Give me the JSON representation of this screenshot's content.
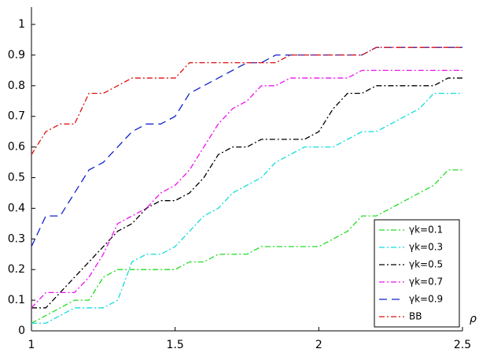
{
  "chart_data": {
    "type": "line",
    "x_label": "ρ",
    "x": [
      1,
      1.05,
      1.1,
      1.15,
      1.2,
      1.25,
      1.3,
      1.35,
      1.4,
      1.45,
      1.5,
      1.55,
      1.6,
      1.65,
      1.7,
      1.75,
      1.8,
      1.85,
      1.9,
      1.95,
      2,
      2.05,
      2.1,
      2.15,
      2.2,
      2.25,
      2.3,
      2.35,
      2.4,
      2.45,
      2.5
    ],
    "xlim": [
      1,
      2.5
    ],
    "xticks": [
      1,
      1.5,
      2,
      2.5
    ],
    "ylim": [
      0,
      1
    ],
    "yticks": [
      0,
      0.1,
      0.2,
      0.3,
      0.4,
      0.5,
      0.6,
      0.7,
      0.8,
      0.9,
      1
    ],
    "legend": "lower right",
    "series": [
      {
        "name": "γk=0.1",
        "color": "#22dd22",
        "dash": "dashdot",
        "values": [
          0.025,
          0.05,
          0.075,
          0.1,
          0.1,
          0.175,
          0.2,
          0.2,
          0.2,
          0.2,
          0.2,
          0.225,
          0.225,
          0.25,
          0.25,
          0.25,
          0.275,
          0.275,
          0.275,
          0.275,
          0.275,
          0.3,
          0.325,
          0.375,
          0.375,
          0.4,
          0.425,
          0.45,
          0.475,
          0.525,
          0.525
        ]
      },
      {
        "name": "γk=0.3",
        "color": "#11dddd",
        "dash": "dashdot",
        "values": [
          0.025,
          0.025,
          0.05,
          0.075,
          0.075,
          0.075,
          0.1,
          0.225,
          0.25,
          0.25,
          0.275,
          0.325,
          0.375,
          0.4,
          0.45,
          0.475,
          0.5,
          0.55,
          0.575,
          0.6,
          0.6,
          0.6,
          0.625,
          0.65,
          0.65,
          0.675,
          0.7,
          0.725,
          0.775,
          0.775,
          0.775
        ]
      },
      {
        "name": "γk=0.5",
        "color": "#000000",
        "dash": "dashdot",
        "values": [
          0.075,
          0.075,
          0.125,
          0.175,
          0.225,
          0.275,
          0.325,
          0.35,
          0.4,
          0.425,
          0.425,
          0.45,
          0.5,
          0.575,
          0.6,
          0.6,
          0.625,
          0.625,
          0.625,
          0.625,
          0.65,
          0.725,
          0.775,
          0.775,
          0.8,
          0.8,
          0.8,
          0.8,
          0.8,
          0.825,
          0.825
        ]
      },
      {
        "name": "γk=0.7",
        "color": "#ee11ee",
        "dash": "dashdot",
        "values": [
          0.075,
          0.125,
          0.125,
          0.125,
          0.175,
          0.25,
          0.35,
          0.375,
          0.4,
          0.45,
          0.475,
          0.525,
          0.6,
          0.675,
          0.725,
          0.75,
          0.8,
          0.8,
          0.825,
          0.825,
          0.825,
          0.825,
          0.825,
          0.85,
          0.85,
          0.85,
          0.85,
          0.85,
          0.85,
          0.85,
          0.85
        ]
      },
      {
        "name": "γk=0.9",
        "color": "#1122cc",
        "dash": "dashed",
        "values": [
          0.275,
          0.375,
          0.375,
          0.45,
          0.525,
          0.55,
          0.6,
          0.65,
          0.675,
          0.675,
          0.7,
          0.775,
          0.8,
          0.825,
          0.85,
          0.875,
          0.875,
          0.9,
          0.9,
          0.9,
          0.9,
          0.9,
          0.9,
          0.9,
          0.925,
          0.925,
          0.925,
          0.925,
          0.925,
          0.925,
          0.925
        ]
      },
      {
        "name": "BB",
        "color": "#dd1111",
        "dash": "dashdot",
        "values": [
          0.575,
          0.65,
          0.675,
          0.675,
          0.775,
          0.775,
          0.8,
          0.825,
          0.825,
          0.825,
          0.825,
          0.875,
          0.875,
          0.875,
          0.875,
          0.875,
          0.875,
          0.875,
          0.9,
          0.9,
          0.9,
          0.9,
          0.9,
          0.9,
          0.925,
          0.925,
          0.925,
          0.925,
          0.925,
          0.925,
          0.925
        ]
      }
    ]
  }
}
